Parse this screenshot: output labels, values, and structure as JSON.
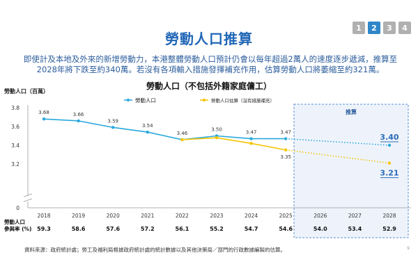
{
  "pager": [
    "1",
    "2",
    "3",
    "4"
  ],
  "pager_active": "2",
  "title": "勞動人口推算",
  "summary_line1": "即使計及本地及外來的新增勞動力，本港整體勞動人口預計仍會以每年超過2萬人的速度逐步遞減，推算至",
  "summary_line2": "2028年將下跌至約340萬。若沒有各項輸入措施發揮補充作用，估算勞動人口將萎縮至約321萬。",
  "footnote": "資料來源：政府統計處；勞工及福利局根據政府統計處的統計數據以及其他決策局／部門的行政數據編製的估算。",
  "page_number": "9",
  "colors": {
    "labour_force": "#29a8dd",
    "estimate": "#f5c400",
    "accent": "#1f66b6",
    "projection_box": "#5b8fd2"
  },
  "chart_data": {
    "type": "line",
    "title": "勞動人口（不包括外籍家庭傭工）",
    "ylabel": "勞動人口（百萬）",
    "ylim": [
      3.0,
      3.8
    ],
    "y_axis_break": true,
    "yticks": [
      "3.8",
      "3.6",
      "3.4",
      "3.2",
      "0"
    ],
    "x": [
      "2018",
      "2019",
      "2020",
      "2021",
      "2022",
      "2023",
      "2024",
      "2025",
      "2026",
      "2027",
      "2028"
    ],
    "grid": false,
    "legend_position": "top",
    "projection_label": "推算",
    "series": [
      {
        "name": "勞動人口",
        "values": [
          3.68,
          3.66,
          3.59,
          3.54,
          3.46,
          3.5,
          3.47,
          3.47,
          null,
          null,
          3.4
        ],
        "labels": [
          "3.68",
          "3.66",
          "3.59",
          "3.54",
          "3.46",
          "3.50",
          "3.47",
          "3.47",
          "",
          "",
          "3.40"
        ],
        "projected_from": "2025"
      },
      {
        "name": "勞動人口估算（沒有措施補充）",
        "values": [
          null,
          null,
          null,
          null,
          3.46,
          3.48,
          3.42,
          3.35,
          null,
          null,
          3.21
        ],
        "labels": [
          "",
          "",
          "",
          "",
          "",
          "",
          "",
          "3.35",
          "",
          "",
          "3.21"
        ],
        "projected_from": "2025"
      }
    ],
    "participation": {
      "label_line1": "勞動人口",
      "label_line2": "參與率 (%)",
      "values": [
        "59.3",
        "58.6",
        "57.6",
        "57.2",
        "56.1",
        "55.2",
        "54.7",
        "54.6",
        "54.0",
        "53.4",
        "52.9"
      ]
    }
  }
}
